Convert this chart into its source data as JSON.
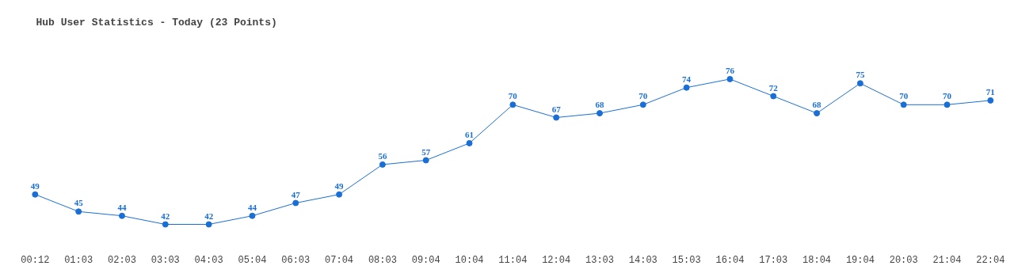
{
  "chart_data": {
    "type": "line",
    "title": "Hub User Statistics - Today (23 Points)",
    "categories": [
      "00:12",
      "01:03",
      "02:03",
      "03:03",
      "04:03",
      "05:04",
      "06:03",
      "07:04",
      "08:03",
      "09:04",
      "10:04",
      "11:04",
      "12:04",
      "13:03",
      "14:03",
      "15:03",
      "16:04",
      "17:03",
      "18:04",
      "19:04",
      "20:03",
      "21:04",
      "22:04"
    ],
    "series": [
      {
        "color": "#1a6fd6",
        "values": [
          49,
          45,
          44,
          42,
          42,
          44,
          47,
          49,
          56,
          57,
          61,
          70,
          67,
          68,
          70,
          74,
          76,
          72,
          68,
          75,
          70,
          70,
          71
        ]
      }
    ],
    "data_labels": true,
    "marker": "circle",
    "line_style": "solid",
    "tick_labels": "x"
  }
}
